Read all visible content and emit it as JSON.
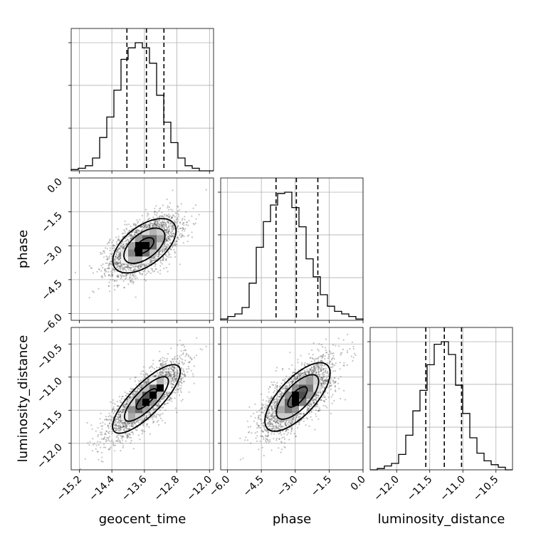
{
  "chart_data": {
    "type": "corner",
    "parameters": [
      {
        "name": "geocent_time",
        "label": "geocent_time",
        "range": [
          -15.4,
          -11.9
        ],
        "ticks": [
          -15.2,
          -14.4,
          -13.6,
          -12.8,
          -12.0
        ],
        "tick_labels": [
          "−15.2",
          "−14.4",
          "−13.6",
          "−12.8",
          "−12.0"
        ],
        "quantiles": [
          -14.03,
          -13.55,
          -13.12
        ],
        "hist_start": -15.4,
        "hist_step": 0.175,
        "hist_counts": [
          0.01,
          0.02,
          0.04,
          0.1,
          0.26,
          0.42,
          0.63,
          0.87,
          0.96,
          1.0,
          0.96,
          0.84,
          0.59,
          0.38,
          0.22,
          0.1,
          0.04,
          0.02,
          0.0,
          0.0
        ]
      },
      {
        "name": "phase",
        "label": "phase",
        "range": [
          -6.3,
          0.0
        ],
        "ticks": [
          -6.0,
          -4.5,
          -3.0,
          -1.5,
          0.0
        ],
        "tick_labels": [
          "−6.0",
          "−4.5",
          "−3.0",
          "−1.5",
          "0.0"
        ],
        "quantiles": [
          -3.85,
          -2.95,
          -2.0
        ],
        "hist_start": -6.3,
        "hist_step": 0.315,
        "hist_counts": [
          0.01,
          0.03,
          0.05,
          0.1,
          0.29,
          0.57,
          0.77,
          0.9,
          0.99,
          1.0,
          0.88,
          0.73,
          0.48,
          0.34,
          0.2,
          0.11,
          0.07,
          0.05,
          0.03,
          0.01
        ]
      },
      {
        "name": "luminosity_distance",
        "label": "luminosity_distance",
        "range": [
          -12.4,
          -10.25
        ],
        "ticks": [
          -12.0,
          -11.5,
          -11.0,
          -10.5
        ],
        "tick_labels": [
          "−12.0",
          "−11.5",
          "−11.0",
          "−10.5"
        ],
        "quantiles": [
          -11.56,
          -11.28,
          -11.02
        ],
        "hist_start": -12.4,
        "hist_step": 0.1075,
        "hist_counts": [
          0.0,
          0.01,
          0.03,
          0.05,
          0.12,
          0.27,
          0.46,
          0.62,
          0.82,
          0.98,
          1.0,
          0.9,
          0.66,
          0.44,
          0.25,
          0.13,
          0.07,
          0.04,
          0.02,
          0.0
        ]
      }
    ],
    "pairs": [
      {
        "x": 0,
        "y": 1,
        "center": [
          -13.6,
          -3.0
        ],
        "sigma": [
          0.42,
          0.65
        ],
        "rho": 0.55,
        "peak": [
          [
            -13.55,
            -2.9
          ],
          [
            -13.75,
            -3.05
          ],
          [
            -13.75,
            -3.25
          ]
        ]
      },
      {
        "x": 0,
        "y": 2,
        "center": [
          -13.55,
          -11.33
        ],
        "sigma": [
          0.45,
          0.28
        ],
        "rho": 0.8,
        "peak": [
          [
            -13.55,
            -11.35
          ],
          [
            -13.4,
            -11.25
          ],
          [
            -13.2,
            -11.18
          ]
        ]
      },
      {
        "x": 1,
        "y": 2,
        "center": [
          -2.9,
          -11.3
        ],
        "sigma": [
          0.78,
          0.28
        ],
        "rho": 0.7,
        "peak": [
          [
            -3.1,
            -11.35
          ],
          [
            -2.85,
            -11.25
          ]
        ]
      }
    ],
    "grid": true
  }
}
